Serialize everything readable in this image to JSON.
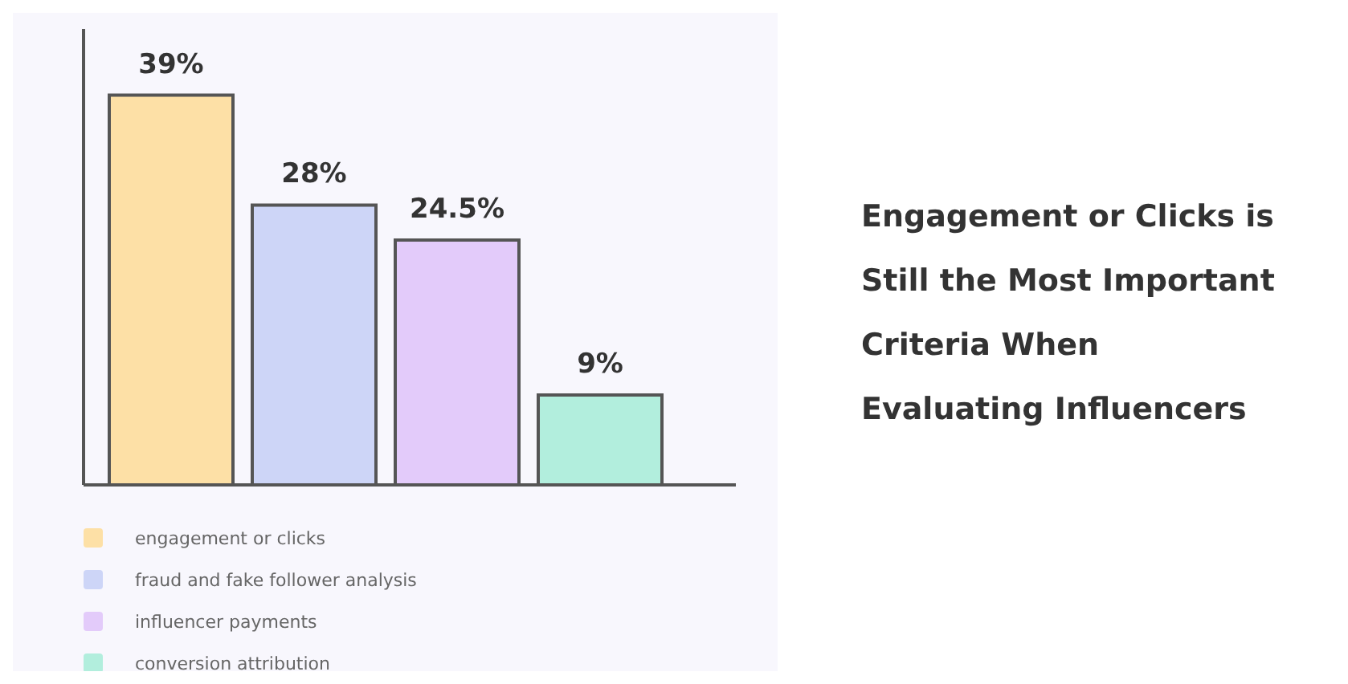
{
  "chart_data": {
    "type": "bar",
    "title": "Engagement or Clicks is Still the Most Important Criteria When Evaluating Influencers",
    "categories": [
      null,
      null,
      null,
      null
    ],
    "series": [
      {
        "name": "engagement or clicks",
        "color": "#fde0a6",
        "values": [
          39,
          null,
          null,
          null
        ],
        "value_labels": [
          "39%",
          null,
          null,
          null
        ]
      },
      {
        "name": "fraud and fake follower analysis",
        "color": "#cdd5f7",
        "values": [
          null,
          28,
          null,
          null
        ],
        "value_labels": [
          null,
          "28%",
          null,
          null
        ]
      },
      {
        "name": "influencer payments",
        "color": "#e3cbfa",
        "values": [
          null,
          null,
          24.5,
          null
        ],
        "value_labels": [
          null,
          null,
          "24.5%",
          null
        ]
      },
      {
        "name": "conversion attribution",
        "color": "#b2eedd",
        "values": [
          null,
          null,
          null,
          9
        ],
        "value_labels": [
          null,
          null,
          null,
          "9%"
        ]
      }
    ],
    "stacked": true,
    "legend": "bottom",
    "tick_labels": false
  }
}
